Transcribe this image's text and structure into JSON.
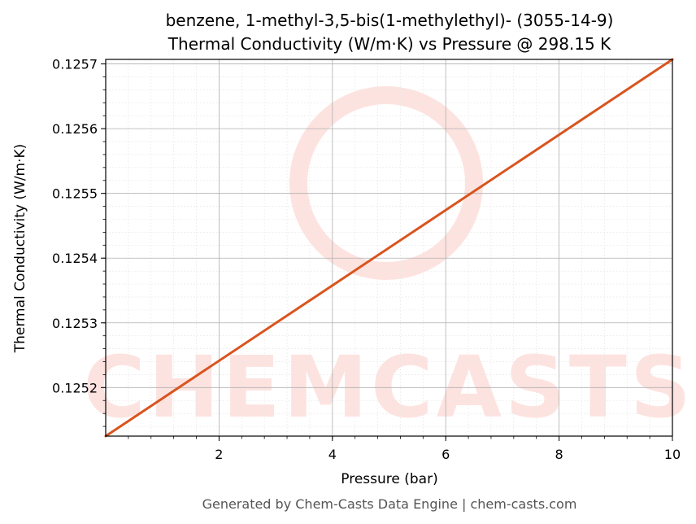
{
  "chart_data": {
    "type": "line",
    "title_line1": "benzene, 1-methyl-3,5-bis(1-methylethyl)- (3055-14-9)",
    "title_line2": "Thermal Conductivity (W/m·K) vs Pressure @ 298.15 K",
    "xlabel": "Pressure (bar)",
    "ylabel": "Thermal Conductivity (W/m·K)",
    "xlim": [
      0.0,
      10.0
    ],
    "ylim": [
      0.125125,
      0.125707
    ],
    "x_ticks": [
      2,
      4,
      6,
      8,
      10
    ],
    "y_ticks": [
      0.1252,
      0.1253,
      0.1254,
      0.1255,
      0.1256,
      0.1257
    ],
    "x_tick_labels": [
      "2",
      "4",
      "6",
      "8",
      "10"
    ],
    "y_tick_labels": [
      "0.1252",
      "0.1253",
      "0.1254",
      "0.1255",
      "0.1256",
      "0.1257"
    ],
    "grid": true,
    "series": [
      {
        "color": "#d9541e",
        "x": [
          0.0,
          10.0
        ],
        "y": [
          0.125125,
          0.125707
        ]
      }
    ]
  },
  "watermark": {
    "text": "CHEMCASTS",
    "color": "#fde3e0"
  },
  "footer": "Generated by Chem-Casts Data Engine | chem-casts.com"
}
